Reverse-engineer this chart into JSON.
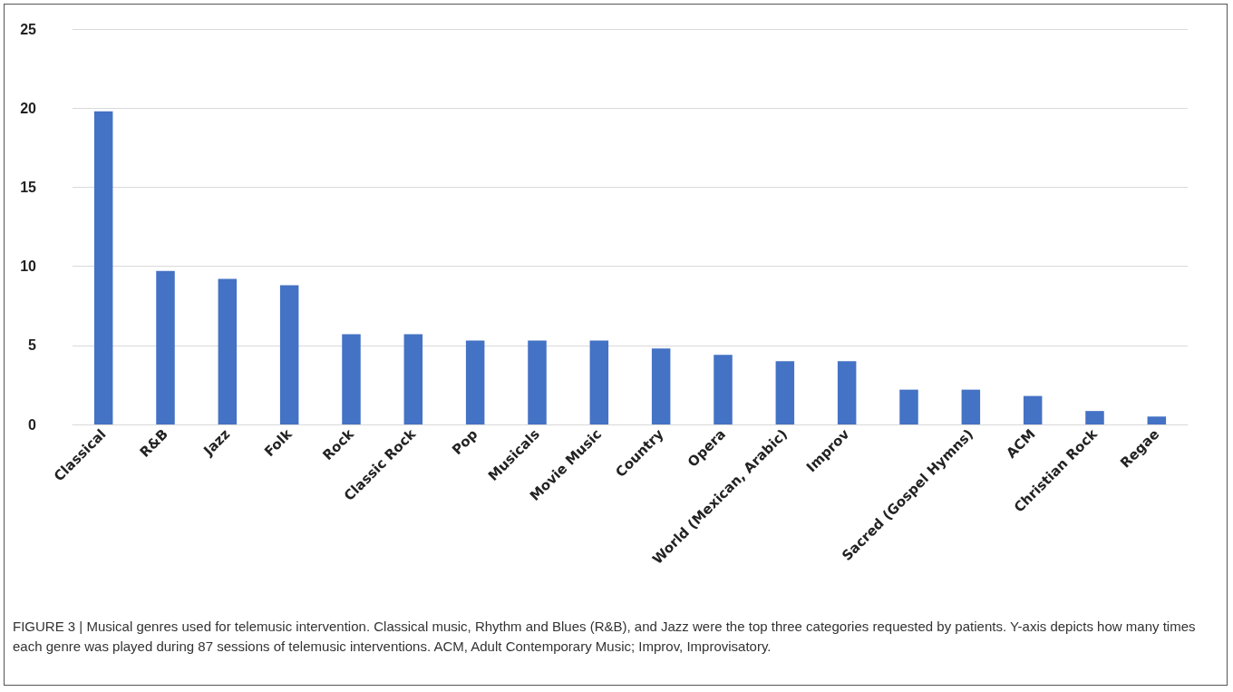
{
  "chart_data": {
    "type": "bar",
    "categories": [
      "Classical",
      "R&B",
      "Jazz",
      "Folk",
      "Rock",
      "Classic Rock",
      "Pop",
      "Musicals",
      "Movie Music",
      "Country",
      "Opera",
      "World (Mexican, Arabic)",
      "Improv",
      null,
      "Sacred (Gospel Hymns)",
      "ACM",
      "Christian Rock",
      "Regae"
    ],
    "values": [
      19.8,
      9.7,
      9.2,
      8.8,
      5.7,
      5.7,
      5.3,
      5.3,
      5.3,
      4.8,
      4.4,
      4.0,
      4.0,
      2.2,
      2.2,
      1.8,
      0.85,
      0.5
    ],
    "color": "#4472c4",
    "ylim": [
      0,
      25
    ],
    "yticks": [
      0,
      5,
      10,
      15,
      20,
      25
    ],
    "grid": "y",
    "annotations": [
      "FIGURE 3 | Musical genres used for telemusic intervention. Classical music, Rhythm and Blues (R&B), and Jazz were the top three categories requested by patients. Y-axis depicts how many times each genre was played during 87 sessions of telemusic interventions. ACM, Adult Contemporary Music; Improv, Improvisatory."
    ]
  }
}
